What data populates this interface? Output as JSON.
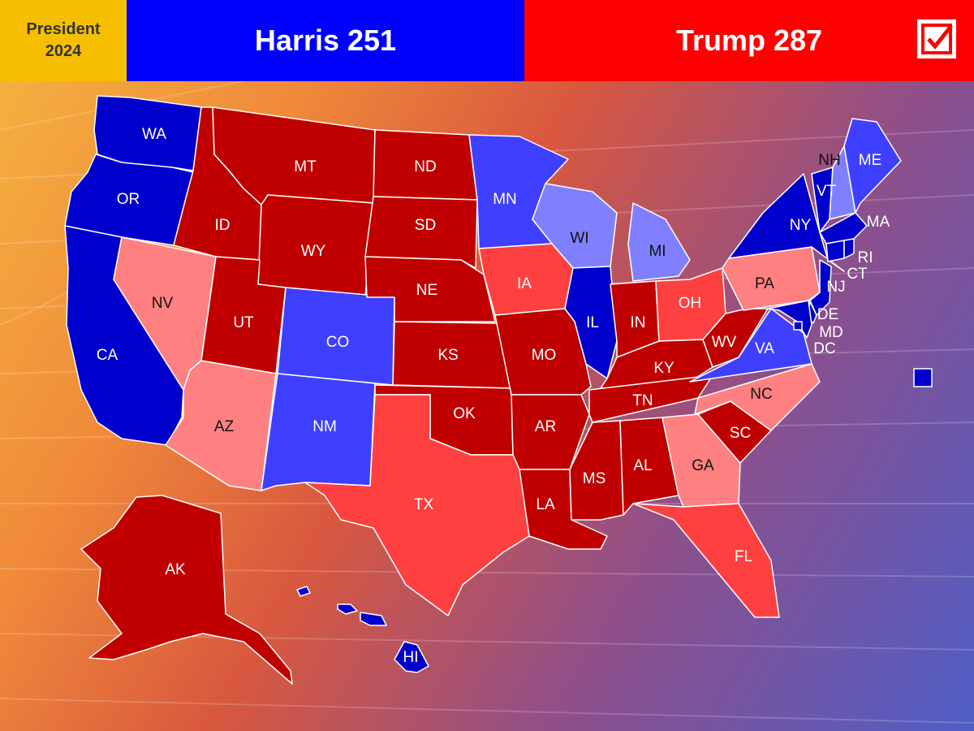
{
  "header": {
    "race_line1": "President",
    "race_line2": "2024",
    "harris": "Harris 251",
    "trump": "Trump 287"
  },
  "colors": {
    "safe_d": "#0000cc",
    "likely_d": "#3f3fff",
    "lean_d": "#8080ff",
    "safe_r": "#c00000",
    "likely_r": "#ff4040",
    "lean_r": "#ff8080",
    "header_label_bg": "#f5bf00",
    "header_harris_bg": "#0000ff",
    "header_trump_bg": "#ff0000"
  },
  "states": {
    "WA": {
      "label": "WA",
      "rating": "safe_d"
    },
    "OR": {
      "label": "OR",
      "rating": "safe_d"
    },
    "CA": {
      "label": "CA",
      "rating": "safe_d"
    },
    "NV": {
      "label": "NV",
      "rating": "lean_r"
    },
    "ID": {
      "label": "ID",
      "rating": "safe_r"
    },
    "MT": {
      "label": "MT",
      "rating": "safe_r"
    },
    "WY": {
      "label": "WY",
      "rating": "safe_r"
    },
    "UT": {
      "label": "UT",
      "rating": "safe_r"
    },
    "AZ": {
      "label": "AZ",
      "rating": "lean_r"
    },
    "CO": {
      "label": "CO",
      "rating": "likely_d"
    },
    "NM": {
      "label": "NM",
      "rating": "likely_d"
    },
    "ND": {
      "label": "ND",
      "rating": "safe_r"
    },
    "SD": {
      "label": "SD",
      "rating": "safe_r"
    },
    "NE": {
      "label": "NE",
      "rating": "safe_r"
    },
    "KS": {
      "label": "KS",
      "rating": "safe_r"
    },
    "OK": {
      "label": "OK",
      "rating": "safe_r"
    },
    "TX": {
      "label": "TX",
      "rating": "likely_r"
    },
    "MN": {
      "label": "MN",
      "rating": "likely_d"
    },
    "IA": {
      "label": "IA",
      "rating": "likely_r"
    },
    "MO": {
      "label": "MO",
      "rating": "safe_r"
    },
    "AR": {
      "label": "AR",
      "rating": "safe_r"
    },
    "LA": {
      "label": "LA",
      "rating": "safe_r"
    },
    "WI": {
      "label": "WI",
      "rating": "lean_d"
    },
    "IL": {
      "label": "IL",
      "rating": "safe_d"
    },
    "MI": {
      "label": "MI",
      "rating": "lean_d"
    },
    "IN": {
      "label": "IN",
      "rating": "safe_r"
    },
    "OH": {
      "label": "OH",
      "rating": "likely_r"
    },
    "KY": {
      "label": "KY",
      "rating": "safe_r"
    },
    "TN": {
      "label": "TN",
      "rating": "safe_r"
    },
    "MS": {
      "label": "MS",
      "rating": "safe_r"
    },
    "AL": {
      "label": "AL",
      "rating": "safe_r"
    },
    "GA": {
      "label": "GA",
      "rating": "lean_r"
    },
    "FL": {
      "label": "FL",
      "rating": "likely_r"
    },
    "SC": {
      "label": "SC",
      "rating": "safe_r"
    },
    "NC": {
      "label": "NC",
      "rating": "lean_r"
    },
    "VA": {
      "label": "VA",
      "rating": "likely_d"
    },
    "WV": {
      "label": "WV",
      "rating": "safe_r"
    },
    "PA": {
      "label": "PA",
      "rating": "lean_r"
    },
    "NY": {
      "label": "NY",
      "rating": "safe_d"
    },
    "VT": {
      "label": "VT",
      "rating": "safe_d"
    },
    "NH": {
      "label": "NH",
      "rating": "lean_d"
    },
    "ME": {
      "label": "ME",
      "rating": "likely_d"
    },
    "MA": {
      "label": "MA",
      "rating": "safe_d"
    },
    "RI": {
      "label": "RI",
      "rating": "safe_d"
    },
    "CT": {
      "label": "CT",
      "rating": "safe_d"
    },
    "NJ": {
      "label": "NJ",
      "rating": "safe_d"
    },
    "DE": {
      "label": "DE",
      "rating": "safe_d"
    },
    "MD": {
      "label": "MD",
      "rating": "safe_d"
    },
    "DC": {
      "label": "DC",
      "rating": "safe_d"
    },
    "AK": {
      "label": "AK",
      "rating": "safe_r"
    },
    "HI": {
      "label": "HI",
      "rating": "safe_d"
    }
  }
}
